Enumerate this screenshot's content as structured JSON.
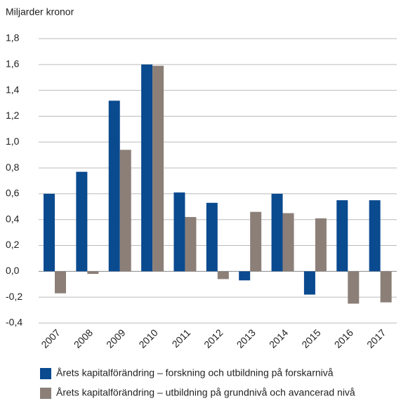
{
  "chart_data": {
    "type": "bar",
    "y_axis_label": "Miljarder kronor",
    "categories": [
      "2007",
      "2008",
      "2009",
      "2010",
      "2011",
      "2012",
      "2013",
      "2014",
      "2015",
      "2016",
      "2017"
    ],
    "series": [
      {
        "name": "Årets kapitalförändring – forskning och utbildning på forskarnivå",
        "color": "#0a4a8f",
        "values": [
          0.6,
          0.77,
          1.32,
          1.6,
          0.61,
          0.53,
          -0.07,
          0.6,
          -0.18,
          0.55,
          0.55
        ]
      },
      {
        "name": "Årets kapitalförändring – utbildning på grundnivå och avancerad nivå",
        "color": "#8c7f78",
        "values": [
          -0.17,
          -0.02,
          0.94,
          1.59,
          0.42,
          -0.06,
          0.46,
          0.45,
          0.41,
          -0.25,
          -0.24
        ]
      }
    ],
    "ylim": [
      -0.4,
      1.8
    ],
    "yticks": [
      {
        "value": -0.4,
        "label": "-0,4"
      },
      {
        "value": -0.2,
        "label": "-0,2"
      },
      {
        "value": 0,
        "label": "0,0"
      },
      {
        "value": 0.2,
        "label": "0,2"
      },
      {
        "value": 0.4,
        "label": "0,4"
      },
      {
        "value": 0.6,
        "label": "0,6"
      },
      {
        "value": 0.8,
        "label": "0,8"
      },
      {
        "value": 1.0,
        "label": "1,0"
      },
      {
        "value": 1.2,
        "label": "1,2"
      },
      {
        "value": 1.4,
        "label": "1,4"
      },
      {
        "value": 1.6,
        "label": "1,6"
      },
      {
        "value": 1.8,
        "label": "1,8"
      }
    ],
    "grid": true
  }
}
